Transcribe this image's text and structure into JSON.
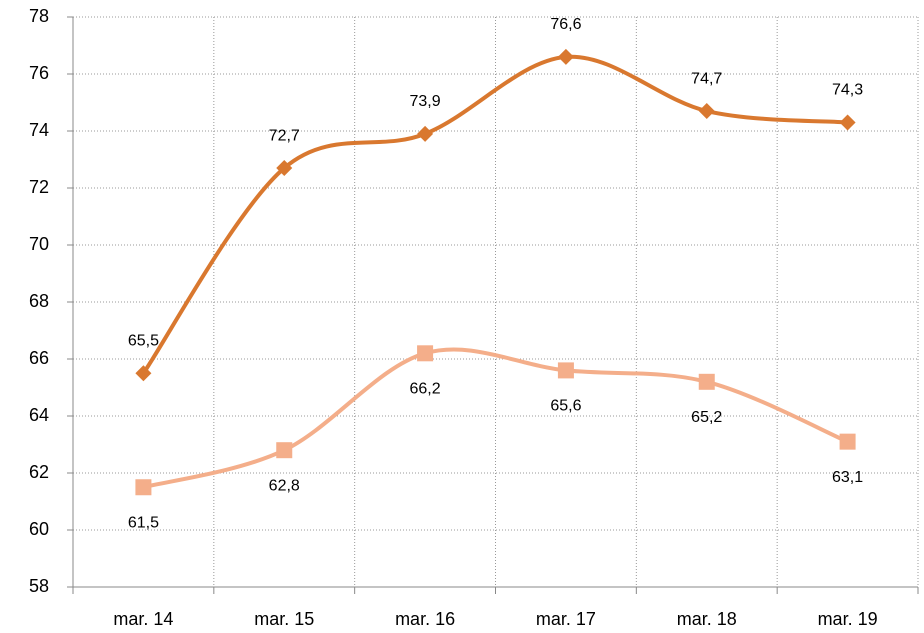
{
  "chart_data": {
    "type": "line",
    "categories": [
      "mar. 14",
      "mar. 15",
      "mar. 16",
      "mar. 17",
      "mar. 18",
      "mar. 19"
    ],
    "series": [
      {
        "color": "#d9782f",
        "marker": "diamond",
        "values": [
          65.5,
          72.7,
          73.9,
          76.6,
          74.7,
          74.3
        ],
        "value_labels": [
          "65,5",
          "72,7",
          "73,9",
          "76,6",
          "74,7",
          "74,3"
        ]
      },
      {
        "color": "#f4ae8a",
        "marker": "square",
        "values": [
          61.5,
          62.8,
          66.2,
          65.6,
          65.2,
          63.1
        ],
        "value_labels": [
          "61,5",
          "62,8",
          "66,2",
          "65,6",
          "65,2",
          "63,1"
        ]
      }
    ],
    "ylim": [
      58,
      78
    ],
    "yticks": [
      58,
      60,
      62,
      64,
      66,
      68,
      70,
      72,
      74,
      76,
      78
    ],
    "grid": true
  }
}
